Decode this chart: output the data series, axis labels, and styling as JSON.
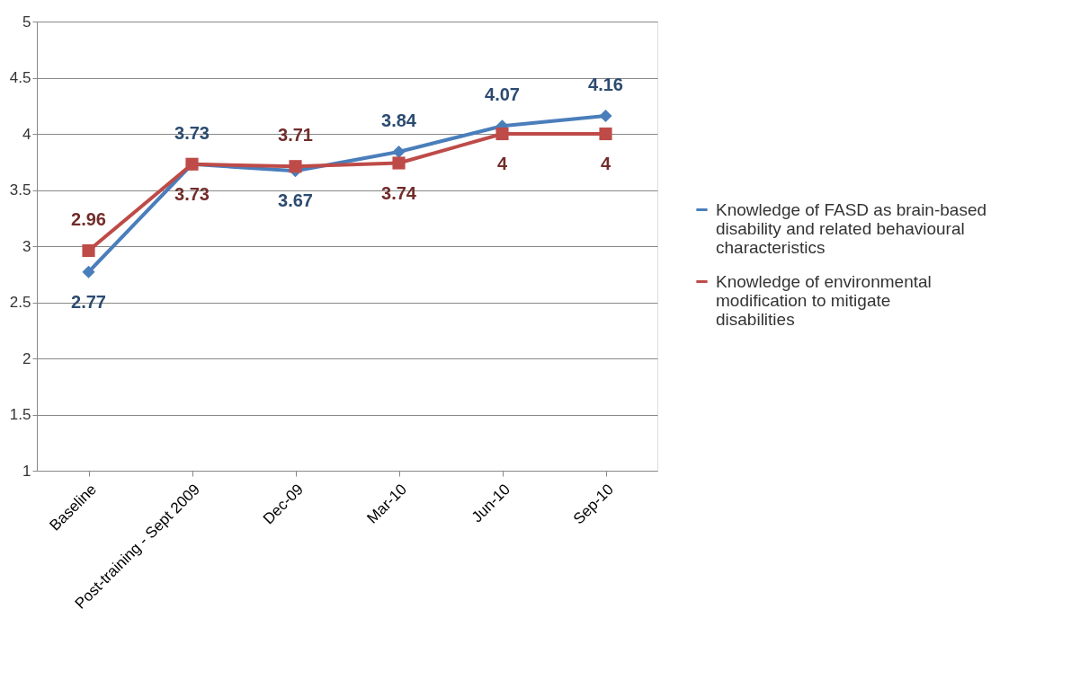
{
  "chart_data": {
    "type": "line",
    "categories": [
      "Baseline",
      "Post-training - Sept 2009",
      "Dec-09",
      "Mar-10",
      "Jun-10",
      "Sep-10"
    ],
    "series": [
      {
        "name": "Knowledge of FASD as brain-based disability and related behavioural characteristics",
        "color": "#4a7ebb",
        "marker": "diamond",
        "values": [
          2.77,
          3.73,
          3.67,
          3.84,
          4.07,
          4.16
        ]
      },
      {
        "name": "Knowledge of environmental modification to mitigate disabilities",
        "color": "#be4b48",
        "marker": "square",
        "values": [
          2.96,
          3.73,
          3.71,
          3.74,
          4,
          4
        ]
      }
    ],
    "ylim": [
      1,
      5
    ],
    "yticks": [
      1,
      1.5,
      2,
      2.5,
      3,
      3.5,
      4,
      4.5,
      5
    ],
    "grid": "y",
    "legend": "right",
    "data_labels": true,
    "line_style": "solid"
  }
}
